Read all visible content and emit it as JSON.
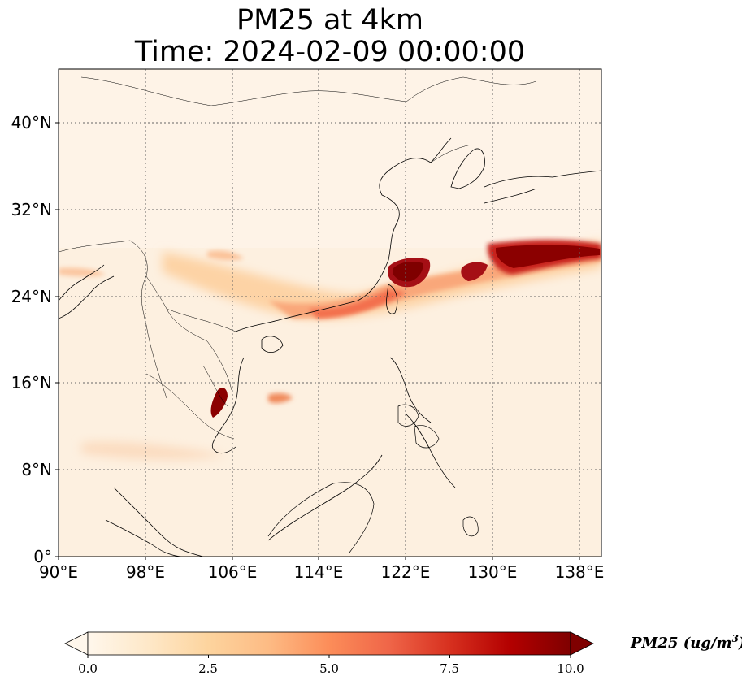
{
  "title_line1": "PM25 at 4km",
  "title_line2": "Time: 2024-02-09 00:00:00",
  "lat_ticks": [
    "0°",
    "8°N",
    "16°N",
    "24°N",
    "32°N",
    "40°N"
  ],
  "lon_ticks": [
    "90°E",
    "98°E",
    "106°E",
    "114°E",
    "122°E",
    "130°E",
    "138°E"
  ],
  "colorbar": {
    "label_prefix": "PM25 (ug/m",
    "label_exp": "3",
    "label_suffix": ")",
    "ticks": [
      "0.0",
      "2.5",
      "5.0",
      "7.5",
      "10.0"
    ],
    "min": 0,
    "max": 10,
    "extend": "both",
    "cmap": [
      "#fff7ec",
      "#fee8c8",
      "#fdd49e",
      "#fdbb84",
      "#fc8d59",
      "#ef6548",
      "#d7301f",
      "#b30000",
      "#7f0000"
    ]
  },
  "map": {
    "lon_range": [
      90,
      140
    ],
    "lat_range": [
      0,
      45
    ],
    "gridlines": true,
    "coastlines": true,
    "borders": true
  }
}
